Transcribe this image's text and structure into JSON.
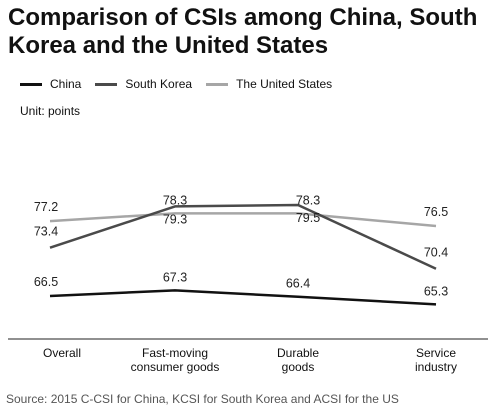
{
  "chart_data": {
    "type": "line",
    "title": "Comparison of CSIs among China, South Korea and the United States",
    "unit_label": "Unit: points",
    "categories": [
      "Overall",
      "Fast-moving consumer goods",
      "Durable goods",
      "Service industry"
    ],
    "category_labels": [
      [
        "Overall"
      ],
      [
        "Fast-moving",
        "consumer goods"
      ],
      [
        "Durable",
        "goods"
      ],
      [
        "Service",
        "industry"
      ]
    ],
    "series": [
      {
        "name": "China",
        "color": "#111111",
        "values": [
          66.5,
          67.3,
          66.4,
          65.3
        ]
      },
      {
        "name": "South Korea",
        "color": "#4a4a4a",
        "values": [
          73.4,
          79.3,
          79.5,
          70.4
        ]
      },
      {
        "name": "The United States",
        "color": "#a6a6a6",
        "values": [
          77.2,
          78.3,
          78.3,
          76.5
        ]
      }
    ],
    "ylim": [
      62,
      88
    ],
    "grid": false,
    "legend_position": "top-left",
    "source": "Source: 2015  C-CSI  for China, KCSI for South Korea and ACSI for the US"
  }
}
